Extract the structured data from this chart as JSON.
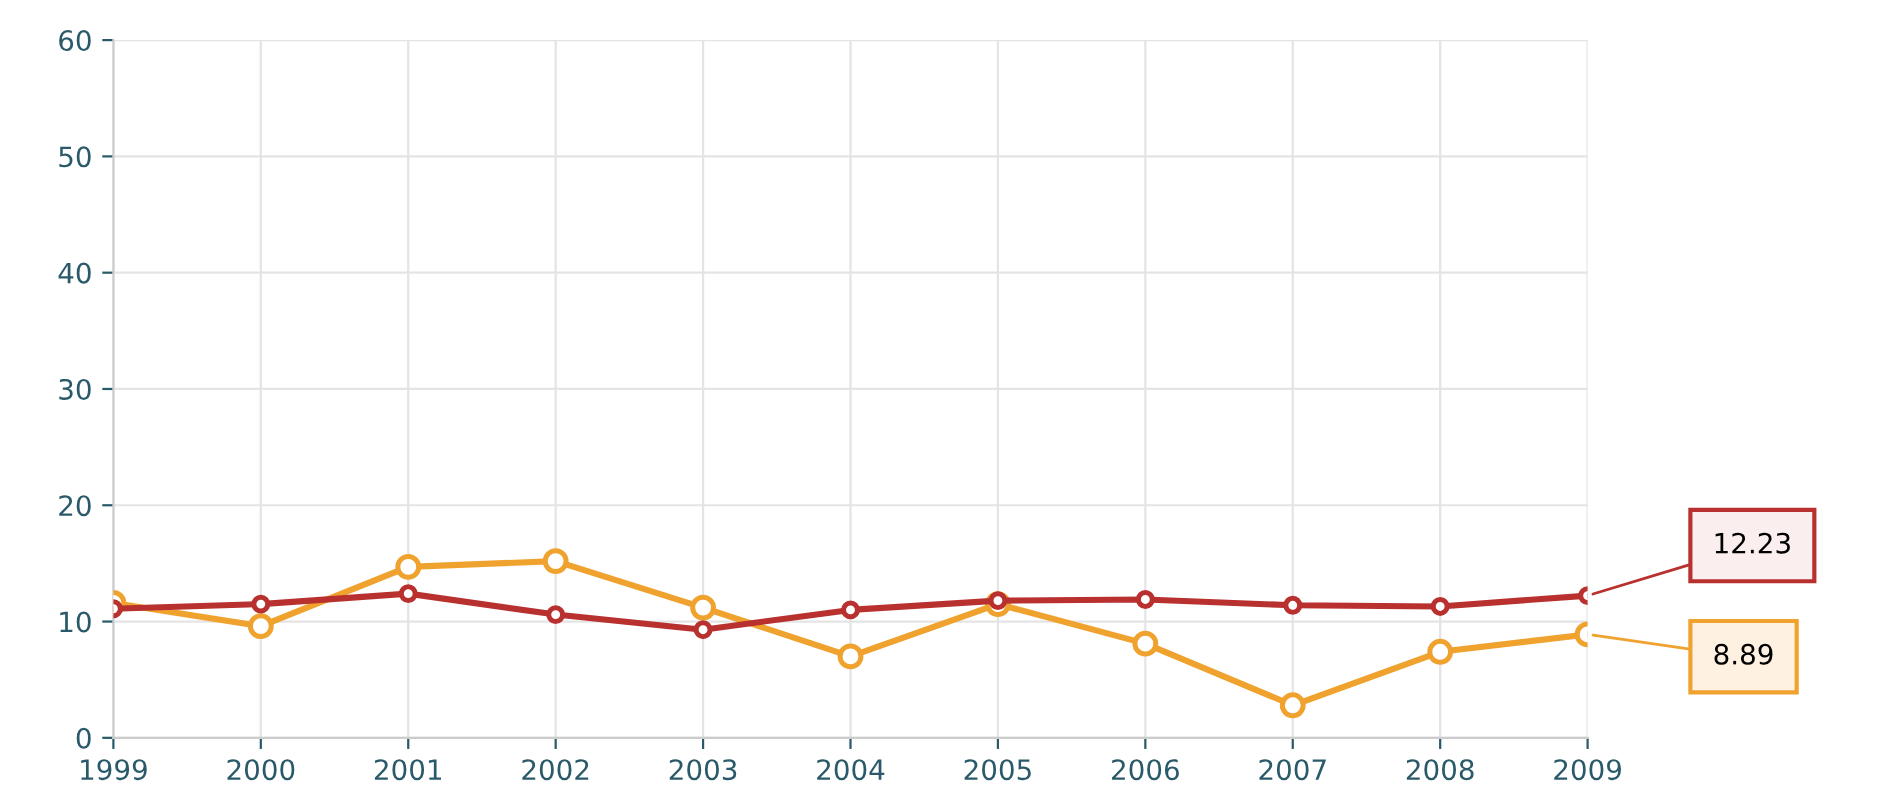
{
  "chart_data": {
    "type": "line",
    "x": [
      1999,
      2000,
      2001,
      2002,
      2003,
      2004,
      2005,
      2006,
      2007,
      2008,
      2009
    ],
    "series": [
      {
        "color": "#b8312f",
        "values": [
          11.1,
          11.5,
          12.4,
          10.6,
          9.3,
          11.0,
          11.8,
          11.9,
          11.4,
          11.3,
          12.23
        ]
      },
      {
        "color": "#f0a22e",
        "values": [
          11.6,
          9.6,
          14.7,
          15.2,
          11.2,
          7.0,
          11.5,
          8.1,
          2.8,
          7.4,
          8.89
        ]
      }
    ],
    "xlim": [
      1999,
      2009
    ],
    "xticks": [
      1999,
      2000,
      2001,
      2002,
      2003,
      2004,
      2005,
      2006,
      2007,
      2008,
      2009
    ],
    "ylim": [
      0,
      60
    ],
    "yticks": [
      0,
      10,
      20,
      30,
      40,
      50,
      60
    ],
    "grid": true,
    "marker": "circle",
    "line_style": "solid",
    "annotations": [
      {
        "text": "12.23",
        "x": 2009,
        "y": 12.23
      },
      {
        "text": "8.89",
        "x": 2009,
        "y": 8.89
      }
    ]
  }
}
